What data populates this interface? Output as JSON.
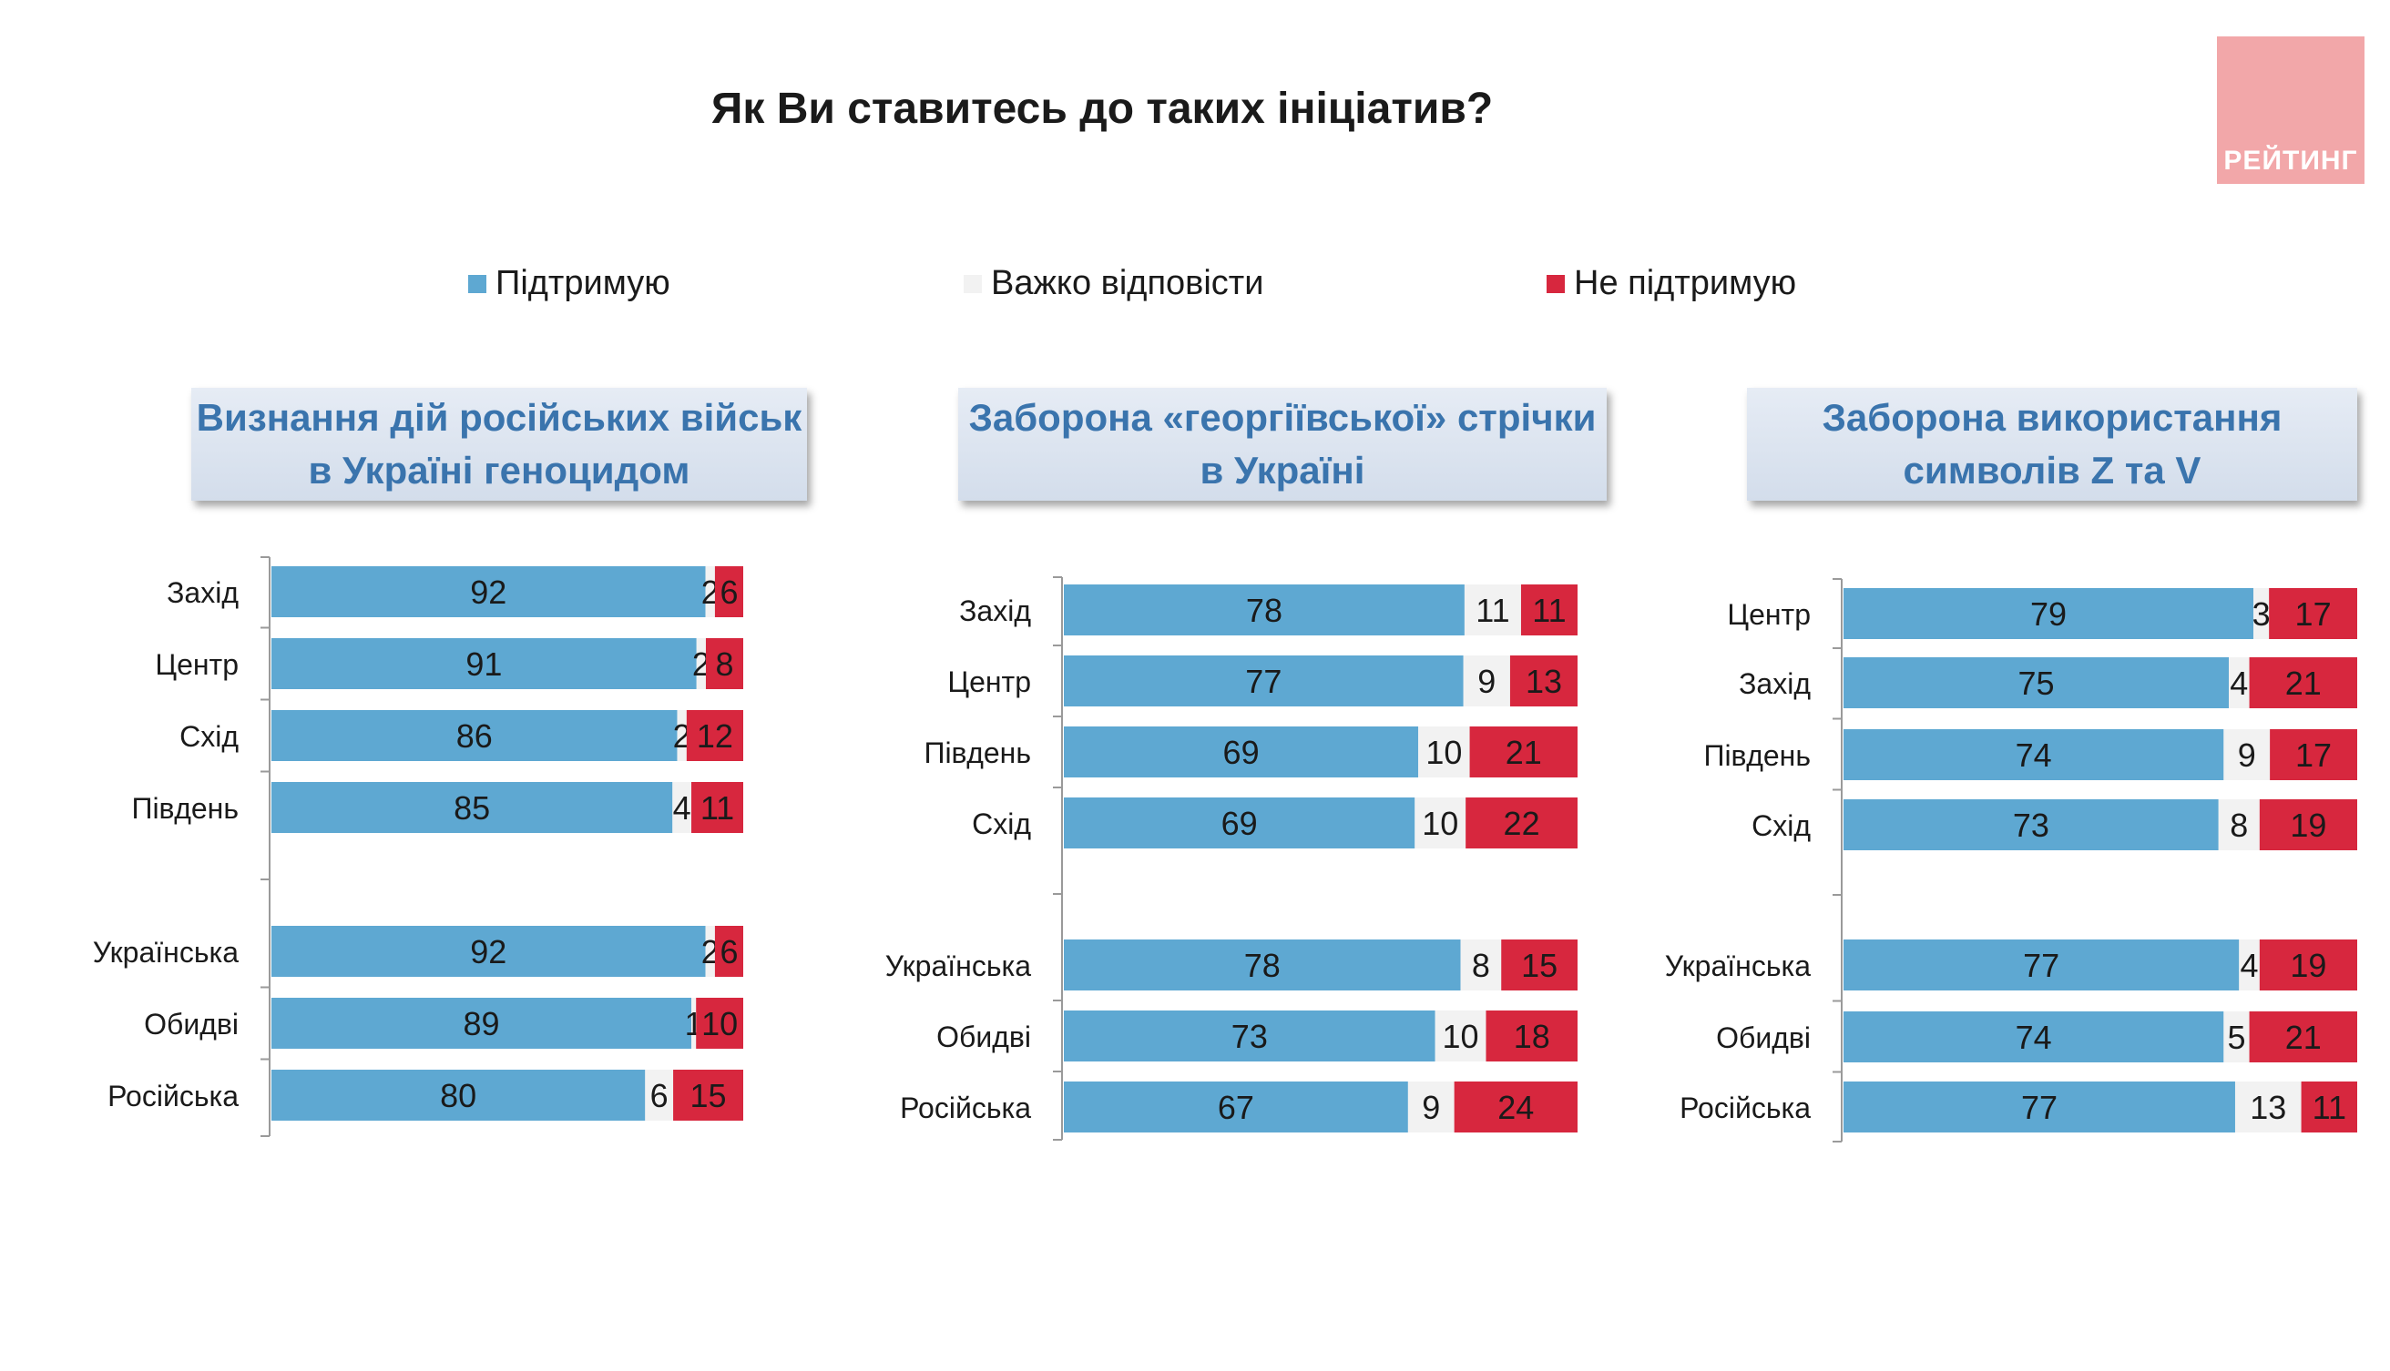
{
  "title": "Як Ви ставитесь до таких ініціатив?",
  "logo": {
    "text": "РЕЙТИНГ"
  },
  "legend": [
    {
      "label": "Підтримую",
      "color": "#5ea8d2"
    },
    {
      "label": "Важко відповісти",
      "color": "#f2f2f2"
    },
    {
      "label": "Не підтримую",
      "color": "#d7273e"
    }
  ],
  "chart_data": [
    {
      "type": "bar",
      "stacked": true,
      "orientation": "horizontal",
      "title": "Визнання дій російських військ в Україні геноцидом",
      "title_lines": [
        "Визнання дій російських військ",
        "в Україні геноцидом"
      ],
      "groups": [
        [
          "Захід",
          "Центр",
          "Схід",
          "Південь"
        ],
        [
          "Українська",
          "Обидві",
          "Російська"
        ]
      ],
      "categories": [
        "Захід",
        "Центр",
        "Схід",
        "Південь",
        "Українська",
        "Обидві",
        "Російська"
      ],
      "series": [
        {
          "name": "Підтримую",
          "values": [
            92,
            91,
            86,
            85,
            92,
            89,
            80
          ]
        },
        {
          "name": "Важко відповісти",
          "values": [
            2,
            2,
            2,
            4,
            2,
            1,
            6
          ]
        },
        {
          "name": "Не підтримую",
          "values": [
            6,
            8,
            12,
            11,
            6,
            10,
            15
          ]
        }
      ]
    },
    {
      "type": "bar",
      "stacked": true,
      "orientation": "horizontal",
      "title": "Заборона «георгіївської» стрічки в Україні",
      "title_lines": [
        "Заборона «георгіївської» стрічки",
        "в Україні"
      ],
      "groups": [
        [
          "Захід",
          "Центр",
          "Південь",
          "Схід"
        ],
        [
          "Українська",
          "Обидві",
          "Російська"
        ]
      ],
      "categories": [
        "Захід",
        "Центр",
        "Південь",
        "Схід",
        "Українська",
        "Обидві",
        "Російська"
      ],
      "series": [
        {
          "name": "Підтримую",
          "values": [
            78,
            77,
            69,
            69,
            78,
            73,
            67
          ]
        },
        {
          "name": "Важко відповісти",
          "values": [
            11,
            9,
            10,
            10,
            8,
            10,
            9
          ]
        },
        {
          "name": "Не підтримую",
          "values": [
            11,
            13,
            21,
            22,
            15,
            18,
            24
          ]
        }
      ]
    },
    {
      "type": "bar",
      "stacked": true,
      "orientation": "horizontal",
      "title": "Заборона використання символів Z та V",
      "title_lines": [
        "Заборона використання",
        "символів Z та V"
      ],
      "groups": [
        [
          "Центр",
          "Захід",
          "Південь",
          "Схід"
        ],
        [
          "Українська",
          "Обидві",
          "Російська"
        ]
      ],
      "categories": [
        "Центр",
        "Захід",
        "Південь",
        "Схід",
        "Українська",
        "Обидві",
        "Російська"
      ],
      "series": [
        {
          "name": "Підтримую",
          "values": [
            79,
            75,
            74,
            73,
            77,
            74,
            77
          ]
        },
        {
          "name": "Важко відповісти",
          "values": [
            3,
            4,
            9,
            8,
            4,
            5,
            13
          ]
        },
        {
          "name": "Не підтримую",
          "values": [
            17,
            21,
            17,
            19,
            19,
            21,
            11
          ]
        }
      ]
    }
  ]
}
